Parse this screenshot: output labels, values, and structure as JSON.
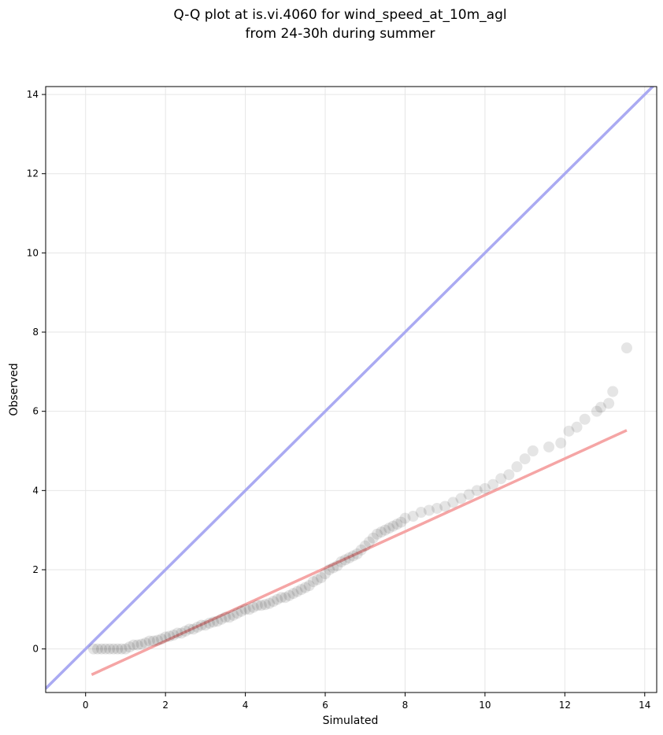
{
  "chart_data": {
    "type": "scatter",
    "title": [
      "Q-Q plot at is.vi.4060 for wind_speed_at_10m_agl",
      "from 24-30h during summer"
    ],
    "xlabel": "Simulated",
    "ylabel": "Observed",
    "xlim": [
      -1.0,
      14.3
    ],
    "ylim": [
      -1.1,
      14.2
    ],
    "xticks": [
      0,
      2,
      4,
      6,
      8,
      10,
      12,
      14
    ],
    "yticks": [
      0,
      2,
      4,
      6,
      8,
      10,
      12,
      14
    ],
    "grid": true,
    "colors": {
      "points": "#000000",
      "identity_line": "#aaaaf2",
      "fit_line": "#f5a5a5",
      "grid": "#e6e6e6"
    },
    "reference_lines": [
      {
        "kind": "identity",
        "x": [
          -1.0,
          14.3
        ],
        "y": [
          -1.0,
          14.3
        ]
      },
      {
        "kind": "fit",
        "x": [
          0.15,
          13.55
        ],
        "y": [
          -0.65,
          5.52
        ]
      }
    ],
    "x": [
      0.2,
      0.3,
      0.4,
      0.5,
      0.6,
      0.7,
      0.8,
      0.9,
      1.0,
      1.1,
      1.2,
      1.3,
      1.4,
      1.5,
      1.6,
      1.7,
      1.8,
      1.9,
      2.0,
      2.1,
      2.2,
      2.3,
      2.4,
      2.5,
      2.6,
      2.7,
      2.8,
      2.9,
      3.0,
      3.1,
      3.2,
      3.3,
      3.4,
      3.5,
      3.6,
      3.7,
      3.8,
      3.9,
      4.0,
      4.1,
      4.2,
      4.3,
      4.4,
      4.5,
      4.6,
      4.7,
      4.8,
      4.9,
      5.0,
      5.1,
      5.2,
      5.3,
      5.4,
      5.5,
      5.6,
      5.7,
      5.8,
      5.9,
      6.0,
      6.1,
      6.2,
      6.3,
      6.4,
      6.5,
      6.6,
      6.7,
      6.8,
      6.9,
      7.0,
      7.1,
      7.2,
      7.3,
      7.4,
      7.5,
      7.6,
      7.7,
      7.8,
      7.9,
      8.0,
      8.2,
      8.4,
      8.6,
      8.8,
      9.0,
      9.2,
      9.4,
      9.6,
      9.8,
      10.0,
      10.2,
      10.4,
      10.6,
      10.8,
      11.0,
      11.2,
      11.6,
      11.9,
      12.1,
      12.3,
      12.5,
      12.8,
      12.9,
      13.1,
      13.2,
      13.55
    ],
    "y": [
      0.0,
      0.0,
      0.0,
      0.0,
      0.0,
      0.0,
      0.0,
      0.0,
      0.0,
      0.05,
      0.1,
      0.1,
      0.12,
      0.15,
      0.2,
      0.2,
      0.22,
      0.25,
      0.3,
      0.32,
      0.35,
      0.4,
      0.4,
      0.45,
      0.5,
      0.5,
      0.55,
      0.6,
      0.6,
      0.65,
      0.68,
      0.7,
      0.75,
      0.8,
      0.8,
      0.85,
      0.9,
      0.95,
      1.0,
      1.0,
      1.05,
      1.1,
      1.1,
      1.12,
      1.15,
      1.2,
      1.25,
      1.3,
      1.3,
      1.35,
      1.4,
      1.45,
      1.5,
      1.55,
      1.6,
      1.7,
      1.75,
      1.8,
      1.9,
      2.0,
      2.05,
      2.1,
      2.2,
      2.25,
      2.3,
      2.35,
      2.4,
      2.5,
      2.6,
      2.7,
      2.8,
      2.9,
      2.95,
      3.0,
      3.05,
      3.1,
      3.15,
      3.2,
      3.3,
      3.35,
      3.45,
      3.5,
      3.55,
      3.6,
      3.7,
      3.8,
      3.9,
      4.0,
      4.05,
      4.15,
      4.3,
      4.4,
      4.6,
      4.8,
      5.0,
      5.1,
      5.2,
      5.5,
      5.6,
      5.8,
      6.0,
      6.1,
      6.2,
      6.5,
      7.6
    ]
  }
}
